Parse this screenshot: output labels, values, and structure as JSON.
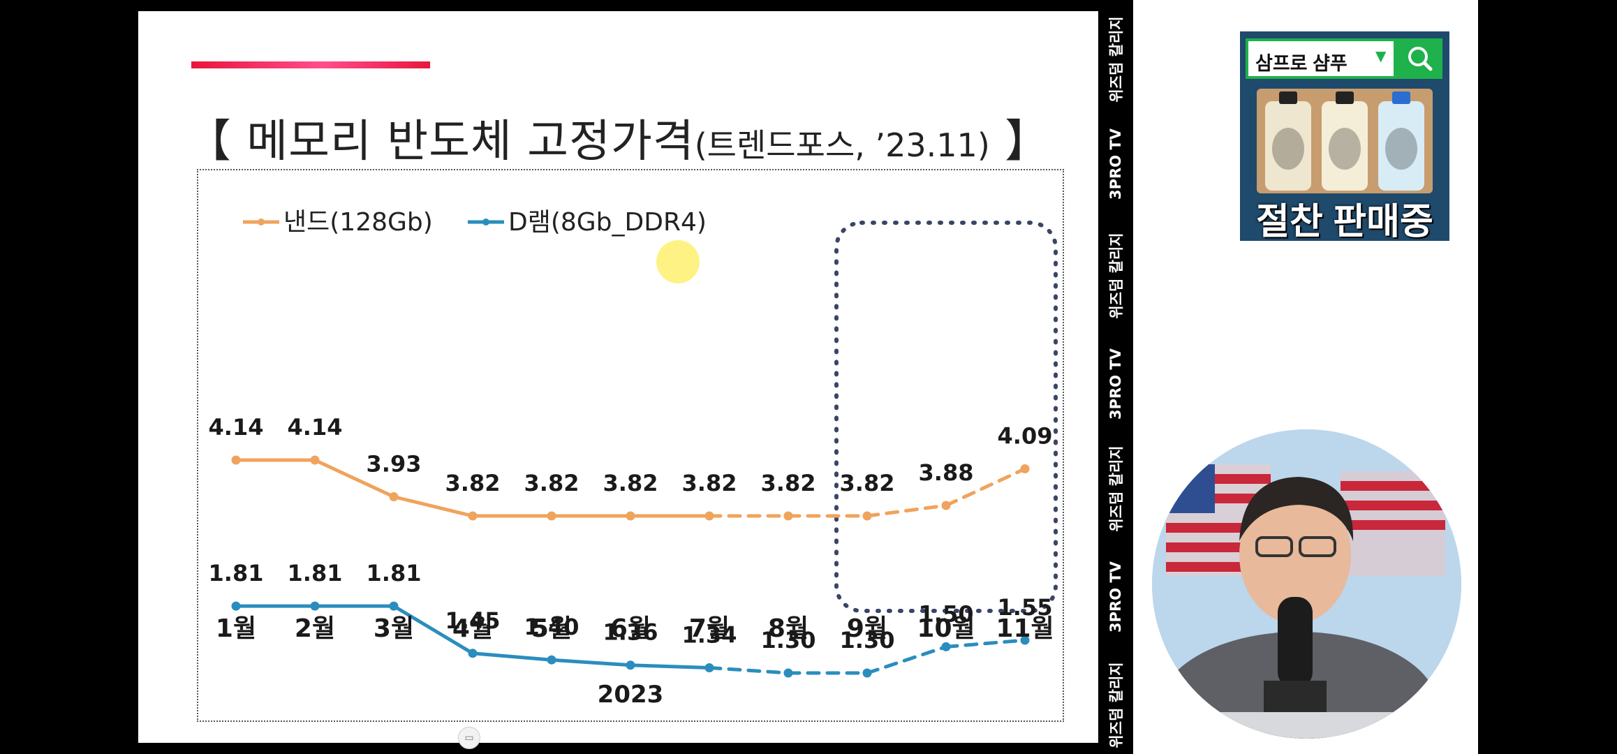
{
  "slide": {
    "title": "【 메모리 반도체 고정가격",
    "title_sub": "(트렌드포스, ’23.11)",
    "title_end": " 】",
    "accent_color": "#e8163c"
  },
  "chart_data": {
    "type": "line",
    "xlabel": "2023",
    "categories": [
      "1월",
      "2월",
      "3월",
      "4월",
      "5월",
      "6월",
      "7월",
      "8월",
      "9월",
      "10월",
      "11월"
    ],
    "dashed_from_index": 6,
    "highlight_box_categories": [
      "9월",
      "10월",
      "11월"
    ],
    "legend_placement": "top-left",
    "series": [
      {
        "name": "낸드(128Gb)",
        "color": "#f0a35c",
        "values": [
          4.14,
          4.14,
          3.93,
          3.82,
          3.82,
          3.82,
          3.82,
          3.82,
          3.82,
          3.88,
          4.09
        ],
        "labels": [
          "4.14",
          "4.14",
          "3.93",
          "3.82",
          "3.82",
          "3.82",
          "3.82",
          "3.82",
          "3.82",
          "3.88",
          "4.09"
        ]
      },
      {
        "name": "D램(8Gb_DDR4)",
        "color": "#2a8dbe",
        "values": [
          1.81,
          1.81,
          1.81,
          1.45,
          1.4,
          1.36,
          1.34,
          1.3,
          1.3,
          1.5,
          1.55
        ],
        "labels": [
          "1.81",
          "1.81",
          "1.81",
          "1.45",
          "1.40",
          "1.36",
          "1.34",
          "1.30",
          "1.30",
          "1.50",
          "1.55"
        ]
      }
    ]
  },
  "watermarks": [
    "위즈덤 칼리지",
    "3PRO TV",
    "위즈덤 칼리지",
    "3PRO TV",
    "위즈덤 칼리지",
    "3PRO TV",
    "위즈덤 칼리지"
  ],
  "ad": {
    "search_text": "삼프로 샴푸",
    "caption": "절찬 판매중",
    "accent_color": "#1fb14b"
  },
  "icons": {
    "search": "search-icon",
    "dropdown": "triangle-down-icon",
    "camera": "video-camera-icon"
  }
}
